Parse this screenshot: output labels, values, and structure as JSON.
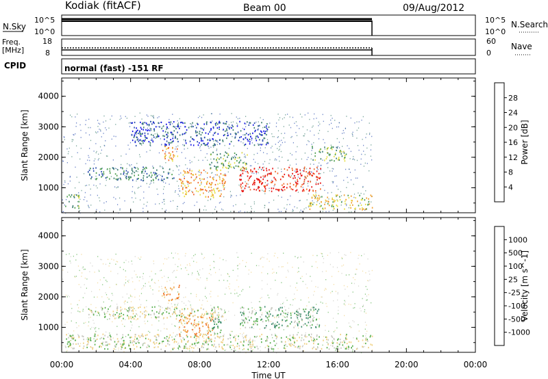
{
  "header": {
    "station": "Kodiak (fitACF)",
    "beam": "Beam 00",
    "date": "09/Aug/2012"
  },
  "status_panels": {
    "nsky_label": "N.Sky",
    "nsky_ticks": [
      "10^5",
      "10^0"
    ],
    "nsearch_label": "N.Search",
    "nsearch_ticks": [
      "10^5",
      "10^0"
    ],
    "freq_label_line1": "Freq.",
    "freq_label_line2": "[MHz]",
    "freq_ticks": [
      "18",
      "8"
    ],
    "nave_label": "Nave",
    "nave_ticks": [
      "60",
      "0"
    ],
    "cpid_label": "CPID",
    "cpid_text": "normal (fast) -151 RF"
  },
  "chart_data": [
    {
      "type": "heatmap",
      "name": "power",
      "ylabel": "Slant Range [km]",
      "yticks": [
        1000,
        2000,
        3000,
        4000
      ],
      "ylim": [
        180,
        4600
      ],
      "xlim": [
        0,
        24
      ],
      "colorbar_label": "Power [dB]",
      "colorbar_ticks": [
        "4",
        "8",
        "12",
        "16",
        "20",
        "24",
        "28"
      ],
      "colorbar_colors": [
        "#1414e6",
        "#2c4fb0",
        "#3f8070",
        "#4fa050",
        "#e8e04a",
        "#f0a030",
        "#f06828",
        "#e81010"
      ],
      "data_end_hour": 18.0,
      "echo_regions": [
        {
          "t0": 0.2,
          "t1": 1.0,
          "r0": 300,
          "r1": 800,
          "level": 3
        },
        {
          "t0": 1.5,
          "t1": 6.5,
          "r0": 1250,
          "r1": 1700,
          "level": 2
        },
        {
          "t0": 5.8,
          "t1": 6.8,
          "r0": 1900,
          "r1": 2400,
          "level": 5
        },
        {
          "t0": 6.8,
          "t1": 9.5,
          "r0": 700,
          "r1": 1600,
          "level": 5
        },
        {
          "t0": 8.5,
          "t1": 10.8,
          "r0": 1600,
          "r1": 2200,
          "level": 3
        },
        {
          "t0": 10.3,
          "t1": 15.0,
          "r0": 900,
          "r1": 1700,
          "level": 7
        },
        {
          "t0": 14.5,
          "t1": 16.5,
          "r0": 1900,
          "r1": 2400,
          "level": 3
        },
        {
          "t0": 14.3,
          "t1": 18.0,
          "r0": 300,
          "r1": 800,
          "level": 4
        },
        {
          "t0": 4.0,
          "t1": 12.0,
          "r0": 2400,
          "r1": 3200,
          "level": 1
        }
      ]
    },
    {
      "type": "heatmap",
      "name": "velocity",
      "ylabel": "Slant Range [km]",
      "yticks": [
        1000,
        2000,
        3000,
        4000
      ],
      "ylim": [
        180,
        4600
      ],
      "xlim": [
        0,
        24
      ],
      "xlabel": "Time UT",
      "xticks": [
        "00:00",
        "04:00",
        "08:00",
        "12:00",
        "16:00",
        "20:00",
        "00:00"
      ],
      "colorbar_label": "Velocity [m s^-1]",
      "colorbar_ticks": [
        "1000",
        "500",
        "100",
        "25",
        "-25",
        "-100",
        "-500",
        "-1000"
      ],
      "colorbar_colors": [
        "#1a3ab0",
        "#2c6aa0",
        "#3a8a6a",
        "#5ab050",
        "#c8c8c0",
        "#f0d080",
        "#f0a040",
        "#f07020",
        "#e81818"
      ],
      "data_end_hour": 18.0,
      "echo_regions": [
        {
          "t0": 0.2,
          "t1": 18.0,
          "r0": 300,
          "r1": 800,
          "level": 4
        },
        {
          "t0": 1.5,
          "t1": 9.5,
          "r0": 1300,
          "r1": 1700,
          "level": 4
        },
        {
          "t0": 5.8,
          "t1": 6.8,
          "r0": 1900,
          "r1": 2400,
          "level": 6
        },
        {
          "t0": 6.8,
          "t1": 8.8,
          "r0": 700,
          "r1": 1500,
          "level": 6
        },
        {
          "t0": 8.5,
          "t1": 9.3,
          "r0": 800,
          "r1": 1400,
          "level": 3
        },
        {
          "t0": 10.3,
          "t1": 15.0,
          "r0": 1000,
          "r1": 1700,
          "level": 3
        }
      ]
    }
  ],
  "axes": {
    "xlabel": "Time UT"
  }
}
